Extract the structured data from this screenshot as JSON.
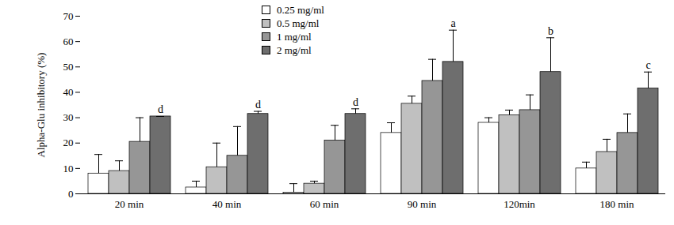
{
  "chart_data": {
    "type": "bar",
    "y_label": "Alpha-Glu inhibitory (%)",
    "categories": [
      "20 min",
      "40 min",
      "60 min",
      "90 min",
      "120min",
      "180 min"
    ],
    "ylim": [
      0,
      70
    ],
    "yticks": [
      0,
      10,
      20,
      30,
      40,
      50,
      60,
      70
    ],
    "legend": "top",
    "series": [
      {
        "name": "0.25 mg/ml",
        "color": "#ffffff",
        "values": [
          8,
          2.5,
          0.5,
          24,
          28,
          10
        ],
        "errors": [
          7.5,
          2.5,
          3.5,
          4,
          2,
          2.5
        ]
      },
      {
        "name": "0.5 mg/ml",
        "color": "#c0c0c0",
        "values": [
          9,
          10.5,
          4,
          35.5,
          31,
          16.5
        ],
        "errors": [
          4,
          9.5,
          1,
          3,
          2,
          5
        ]
      },
      {
        "name": "1 mg/ml",
        "color": "#969696",
        "values": [
          20.5,
          15,
          21,
          44.5,
          33,
          24
        ],
        "errors": [
          9.5,
          11.5,
          6,
          8.5,
          6,
          7.5
        ]
      },
      {
        "name": "2 mg/ml",
        "color": "#6e6e6e",
        "values": [
          30.5,
          31.5,
          31.5,
          52,
          48,
          41.5
        ],
        "errors": [
          0,
          1,
          2,
          12.5,
          13.5,
          6.5
        ],
        "annotations": [
          "d",
          "d",
          "d",
          "a",
          "b",
          "c"
        ]
      }
    ]
  }
}
